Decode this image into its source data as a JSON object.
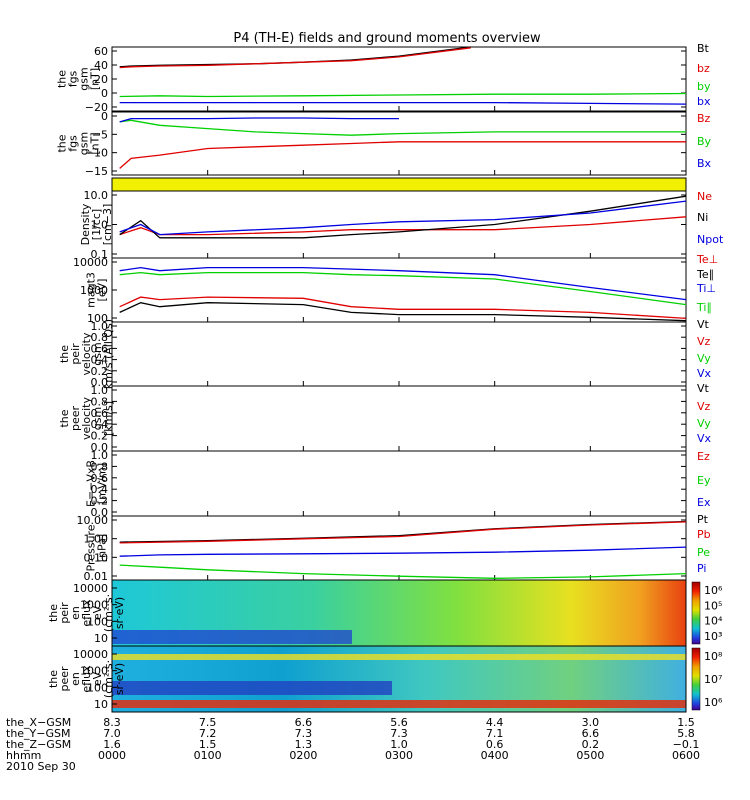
{
  "title": "P4 (TH-E) fields and ground moments overview",
  "colors": {
    "black": "#000000",
    "red": "#e00000",
    "green": "#00d000",
    "blue": "#0000e0",
    "yellow": "#f0f000"
  },
  "chart_data": [
    {
      "type": "line",
      "ylabel": [
        "the",
        "fgs",
        "gsm",
        "[nT]"
      ],
      "yticks": [
        "60",
        "40",
        "20",
        "0",
        "−20"
      ],
      "ylim": [
        -22,
        62
      ],
      "legend": [
        {
          "name": "Bt",
          "color": "black"
        },
        {
          "name": "bz",
          "color": "red"
        },
        {
          "name": "by",
          "color": "green"
        },
        {
          "name": "bx",
          "color": "blue"
        }
      ],
      "series": [
        {
          "name": "Bt",
          "color": "black",
          "x": [
            0.08,
            0.2,
            0.5,
            1.0,
            1.5,
            2.0,
            2.5,
            3.0,
            3.5,
            3.75
          ],
          "y": [
            36,
            37,
            38,
            39,
            40,
            42,
            45,
            50,
            58,
            62
          ]
        },
        {
          "name": "bz",
          "color": "red",
          "x": [
            0.08,
            0.2,
            0.5,
            1.0,
            1.5,
            2.0,
            2.5,
            3.0,
            3.5,
            3.75
          ],
          "y": [
            35,
            36,
            37,
            38,
            40,
            42,
            44,
            49,
            57,
            61
          ]
        },
        {
          "name": "by",
          "color": "green",
          "x": [
            0.08,
            0.5,
            1.0,
            2.0,
            3.0,
            4.0,
            5.0,
            6.0
          ],
          "y": [
            -3,
            -2,
            -3,
            -2,
            -1,
            0,
            0,
            1
          ]
        },
        {
          "name": "bx",
          "color": "blue",
          "x": [
            0.08,
            1.0,
            2.0,
            3.0,
            4.0,
            5.0,
            6.0
          ],
          "y": [
            -11,
            -11,
            -11,
            -11,
            -11,
            -12,
            -13
          ]
        }
      ]
    },
    {
      "type": "line",
      "ylabel": [
        "the",
        "fgs",
        "gsm",
        "[nT]"
      ],
      "yticks": [
        "0",
        "−5",
        "−10",
        "−15"
      ],
      "ylim": [
        -17,
        2
      ],
      "legend": [
        {
          "name": "Bz",
          "color": "red"
        },
        {
          "name": "By",
          "color": "green"
        },
        {
          "name": "Bx",
          "color": "blue"
        }
      ],
      "series": [
        {
          "name": "Bz",
          "color": "red",
          "x": [
            0.08,
            0.2,
            0.5,
            1.0,
            1.5,
            2.0,
            2.5,
            3.0,
            4.0,
            5.0,
            6.0
          ],
          "y": [
            -15,
            -12,
            -11,
            -9,
            -8.5,
            -8,
            -7.5,
            -7,
            -7,
            -7,
            -7
          ]
        },
        {
          "name": "By",
          "color": "green",
          "x": [
            0.08,
            0.2,
            0.5,
            1.0,
            1.5,
            2.0,
            2.5,
            3.0,
            4.0,
            5.0,
            6.0
          ],
          "y": [
            -1,
            -0.5,
            -2,
            -3,
            -4,
            -4.5,
            -5,
            -4.5,
            -4,
            -4,
            -4
          ]
        },
        {
          "name": "Bx",
          "color": "blue",
          "x": [
            0.08,
            0.2,
            0.5,
            1.0,
            1.5,
            2.0,
            2.5,
            3.0
          ],
          "y": [
            -1,
            0,
            0,
            0,
            0.2,
            0.2,
            0,
            0
          ]
        }
      ]
    },
    {
      "type": "bar",
      "note": "flag strip",
      "color": "yellow"
    },
    {
      "type": "line",
      "scale": "log",
      "ylabel": [
        "Density",
        "[1/cc]",
        "[cm−3]"
      ],
      "yticks": [
        "10.0",
        "1.0",
        "0.1"
      ],
      "ylim": [
        0.1,
        10
      ],
      "legend": [
        {
          "name": "Ne",
          "color": "red"
        },
        {
          "name": "Ni",
          "color": "black"
        },
        {
          "name": "Npot",
          "color": "blue"
        }
      ],
      "series": [
        {
          "name": "Ne",
          "color": "red",
          "x": [
            0.08,
            0.3,
            0.5,
            1.0,
            2.0,
            2.5,
            3.0,
            4.0,
            5.0,
            6.0
          ],
          "y": [
            0.5,
            0.8,
            0.5,
            0.5,
            0.6,
            0.7,
            0.7,
            0.7,
            1.0,
            1.7
          ]
        },
        {
          "name": "Ni",
          "color": "black",
          "x": [
            0.08,
            0.3,
            0.5,
            1.0,
            2.0,
            2.5,
            3.0,
            4.0,
            5.0,
            6.0
          ],
          "y": [
            0.5,
            1.3,
            0.4,
            0.4,
            0.4,
            0.5,
            0.6,
            1.0,
            2.5,
            7.0
          ]
        },
        {
          "name": "Npot",
          "color": "blue",
          "x": [
            0.08,
            0.3,
            0.5,
            1.0,
            2.0,
            2.5,
            3.0,
            4.0,
            5.0,
            6.0
          ],
          "y": [
            0.6,
            1.0,
            0.5,
            0.6,
            0.8,
            1.0,
            1.2,
            1.4,
            2.2,
            5.0
          ]
        }
      ]
    },
    {
      "type": "line",
      "scale": "log",
      "ylabel": [
        "magt3",
        "[eV]"
      ],
      "yticks": [
        "10000",
        "1000",
        "100"
      ],
      "ylim": [
        100,
        10000
      ],
      "legend": [
        {
          "name": "Te⊥",
          "color": "red"
        },
        {
          "name": "Te∥",
          "color": "black"
        },
        {
          "name": "Ti⊥",
          "color": "blue"
        },
        {
          "name": "Ti∥",
          "color": "green"
        }
      ],
      "series": [
        {
          "name": "Te⊥",
          "color": "red",
          "x": [
            0.08,
            0.3,
            0.5,
            1.0,
            2.0,
            2.5,
            3.0,
            4.0,
            5.0,
            6.0
          ],
          "y": [
            300,
            600,
            500,
            600,
            550,
            300,
            250,
            250,
            200,
            130
          ]
        },
        {
          "name": "Te∥",
          "color": "black",
          "x": [
            0.08,
            0.3,
            0.5,
            1.0,
            2.0,
            2.5,
            3.0,
            4.0,
            5.0,
            6.0
          ],
          "y": [
            200,
            400,
            300,
            400,
            350,
            200,
            170,
            170,
            140,
            110
          ]
        },
        {
          "name": "Ti⊥",
          "color": "blue",
          "x": [
            0.08,
            0.3,
            0.5,
            1.0,
            2.0,
            2.5,
            3.0,
            4.0,
            5.0,
            6.0
          ],
          "y": [
            4000,
            5000,
            4000,
            5000,
            5000,
            4500,
            4000,
            3000,
            1200,
            500
          ]
        },
        {
          "name": "Ti∥",
          "color": "green",
          "x": [
            0.08,
            0.3,
            0.5,
            1.0,
            2.0,
            2.5,
            3.0,
            4.0,
            5.0,
            6.0
          ],
          "y": [
            3000,
            3500,
            3000,
            3500,
            3500,
            3000,
            2800,
            2200,
            900,
            350
          ]
        }
      ]
    },
    {
      "type": "line",
      "ylabel": [
        "the",
        "peir",
        "velocity",
        "gsm",
        "km/s (All Qs)"
      ],
      "yticks": [
        "1.0",
        "0.8",
        "0.6",
        "0.4",
        "0.2",
        "0.0"
      ],
      "ylim": [
        0,
        1
      ],
      "legend": [
        {
          "name": "Vt",
          "color": "black"
        },
        {
          "name": "Vz",
          "color": "red"
        },
        {
          "name": "Vy",
          "color": "green"
        },
        {
          "name": "Vx",
          "color": "blue"
        }
      ],
      "series": []
    },
    {
      "type": "line",
      "ylabel": [
        "the",
        "peer",
        "velocity",
        "gsm",
        "[km/s]"
      ],
      "yticks": [
        "1.0",
        "0.8",
        "0.6",
        "0.4",
        "0.2",
        "0.0"
      ],
      "ylim": [
        0,
        1
      ],
      "legend": [
        {
          "name": "Vt",
          "color": "black"
        },
        {
          "name": "Vz",
          "color": "red"
        },
        {
          "name": "Vy",
          "color": "green"
        },
        {
          "name": "Vx",
          "color": "blue"
        }
      ],
      "series": []
    },
    {
      "type": "line",
      "ylabel": [
        "E=−VxB",
        "[mV/m]"
      ],
      "yticks": [
        "1.0",
        "0.8",
        "0.6",
        "0.4",
        "0.2",
        "0.0"
      ],
      "ylim": [
        0,
        1
      ],
      "legend": [
        {
          "name": "Ez",
          "color": "red"
        },
        {
          "name": "Ey",
          "color": "green"
        },
        {
          "name": "Ex",
          "color": "blue"
        }
      ],
      "series": []
    },
    {
      "type": "line",
      "scale": "log",
      "ylabel": [
        "Pressure",
        "[nPa]"
      ],
      "yticks": [
        "10.00",
        "1.00",
        "0.10",
        "0.01"
      ],
      "ylim": [
        0.01,
        10
      ],
      "legend": [
        {
          "name": "Pt",
          "color": "black"
        },
        {
          "name": "Pb",
          "color": "red"
        },
        {
          "name": "Pe",
          "color": "green"
        },
        {
          "name": "Pi",
          "color": "blue"
        }
      ],
      "series": [
        {
          "name": "Pt",
          "color": "black",
          "x": [
            0.08,
            1.0,
            2.0,
            3.0,
            4.0,
            5.0,
            6.0
          ],
          "y": [
            0.6,
            0.7,
            0.9,
            1.2,
            2.5,
            4.0,
            5.5
          ]
        },
        {
          "name": "Pb",
          "color": "red",
          "x": [
            0.08,
            1.0,
            2.0,
            3.0,
            4.0,
            5.0,
            6.0
          ],
          "y": [
            0.55,
            0.65,
            0.85,
            1.1,
            2.4,
            3.8,
            5.3
          ]
        },
        {
          "name": "Pe",
          "color": "green",
          "x": [
            0.08,
            0.5,
            1.0,
            2.0,
            3.0,
            4.0,
            5.0,
            6.0
          ],
          "y": [
            0.05,
            0.04,
            0.03,
            0.02,
            0.015,
            0.012,
            0.014,
            0.02
          ]
        },
        {
          "name": "Pi",
          "color": "blue",
          "x": [
            0.08,
            0.5,
            1.0,
            2.0,
            3.0,
            4.0,
            5.0,
            6.0
          ],
          "y": [
            0.13,
            0.15,
            0.16,
            0.17,
            0.18,
            0.2,
            0.25,
            0.35
          ]
        }
      ]
    },
    {
      "type": "heatmap",
      "ylabel": [
        "the",
        "peir",
        "en",
        "eflux",
        "eV",
        "(cm²·s·",
        "sr·eV)"
      ],
      "yticks": [
        "10000",
        "1000",
        "100",
        "10"
      ],
      "colorbar_ticks": [
        "10⁶",
        "10⁵",
        "10⁴",
        "10³"
      ]
    },
    {
      "type": "heatmap",
      "ylabel": [
        "the",
        "peer",
        "en",
        "eflux",
        "eV",
        "(cm²·s·",
        "sr·eV)"
      ],
      "yticks": [
        "10000",
        "1000",
        "100",
        "10"
      ],
      "colorbar_ticks": [
        "10⁸",
        "10⁷",
        "10⁶"
      ]
    }
  ],
  "x_axis": {
    "ticks": [
      0,
      1,
      2,
      3,
      4,
      5,
      6
    ],
    "rows": [
      {
        "label": "the_X−GSM",
        "values": [
          "8.3",
          "7.5",
          "6.6",
          "5.6",
          "4.4",
          "3.0",
          "1.5"
        ]
      },
      {
        "label": "the_Y−GSM",
        "values": [
          "7.0",
          "7.2",
          "7.3",
          "7.3",
          "7.1",
          "6.6",
          "5.8"
        ]
      },
      {
        "label": "the_Z−GSM",
        "values": [
          "1.6",
          "1.5",
          "1.3",
          "1.0",
          "0.6",
          "0.2",
          "−0.1"
        ]
      },
      {
        "label": "hhmm",
        "values": [
          "0000",
          "0100",
          "0200",
          "0300",
          "0400",
          "0500",
          "0600"
        ]
      }
    ],
    "date": "2010 Sep 30"
  }
}
